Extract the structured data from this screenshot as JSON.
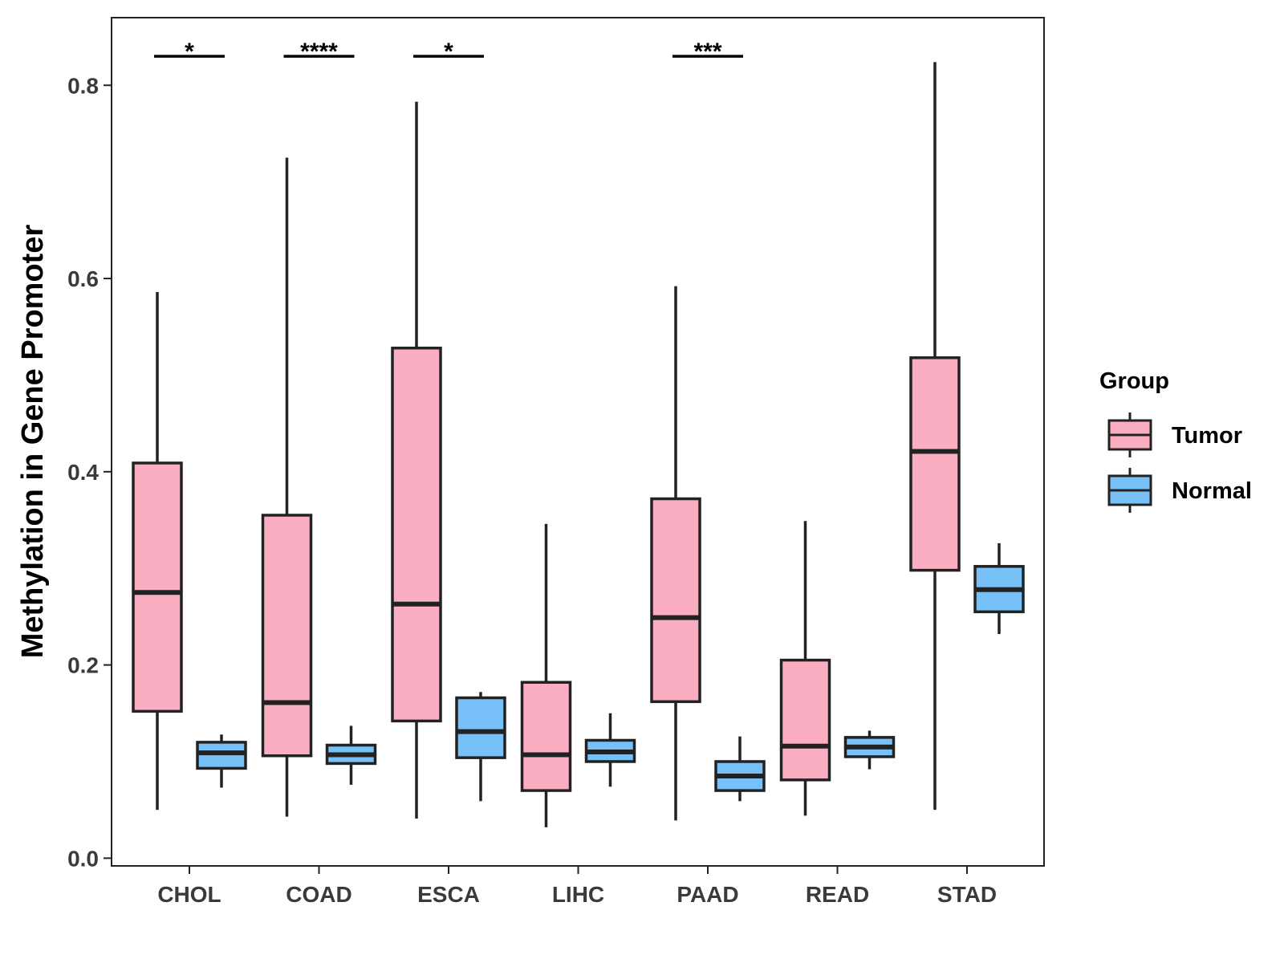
{
  "chart_data": {
    "type": "boxplot",
    "title": "",
    "xlabel": "",
    "ylabel": "Methylation in Gene Promoter",
    "ylim": [
      -0.008,
      0.87
    ],
    "yticks": [
      0.0,
      0.2,
      0.4,
      0.6,
      0.8
    ],
    "ytick_labels": [
      "0.0",
      "0.2",
      "0.4",
      "0.6",
      "0.8"
    ],
    "categories": [
      "CHOL",
      "COAD",
      "ESCA",
      "LIHC",
      "PAAD",
      "READ",
      "STAD"
    ],
    "legend": {
      "title": "Group",
      "position": "right",
      "entries": [
        {
          "name": "Tumor",
          "color": "#FBAEC2"
        },
        {
          "name": "Normal",
          "color": "#77C0F8"
        }
      ]
    },
    "series": [
      {
        "name": "Tumor",
        "color": "#FBAEC2",
        "boxes": [
          {
            "min": 0.05,
            "q1": 0.152,
            "median": 0.275,
            "q3": 0.409,
            "max": 0.586
          },
          {
            "min": 0.043,
            "q1": 0.106,
            "median": 0.161,
            "q3": 0.355,
            "max": 0.725
          },
          {
            "min": 0.041,
            "q1": 0.142,
            "median": 0.263,
            "q3": 0.528,
            "max": 0.783
          },
          {
            "min": 0.032,
            "q1": 0.07,
            "median": 0.107,
            "q3": 0.182,
            "max": 0.346
          },
          {
            "min": 0.039,
            "q1": 0.162,
            "median": 0.249,
            "q3": 0.372,
            "max": 0.592
          },
          {
            "min": 0.044,
            "q1": 0.081,
            "median": 0.116,
            "q3": 0.205,
            "max": 0.349
          },
          {
            "min": 0.05,
            "q1": 0.298,
            "median": 0.421,
            "q3": 0.518,
            "max": 0.824
          }
        ]
      },
      {
        "name": "Normal",
        "color": "#77C0F8",
        "boxes": [
          {
            "min": 0.073,
            "q1": 0.093,
            "median": 0.109,
            "q3": 0.12,
            "max": 0.128
          },
          {
            "min": 0.076,
            "q1": 0.098,
            "median": 0.107,
            "q3": 0.117,
            "max": 0.137
          },
          {
            "min": 0.059,
            "q1": 0.104,
            "median": 0.131,
            "q3": 0.166,
            "max": 0.172
          },
          {
            "min": 0.074,
            "q1": 0.1,
            "median": 0.11,
            "q3": 0.122,
            "max": 0.15
          },
          {
            "min": 0.059,
            "q1": 0.07,
            "median": 0.085,
            "q3": 0.1,
            "max": 0.126
          },
          {
            "min": 0.092,
            "q1": 0.105,
            "median": 0.115,
            "q3": 0.125,
            "max": 0.132
          },
          {
            "min": 0.232,
            "q1": 0.255,
            "median": 0.278,
            "q3": 0.302,
            "max": 0.326
          }
        ]
      }
    ],
    "significance": [
      {
        "category": "CHOL",
        "label": "*"
      },
      {
        "category": "COAD",
        "label": "****"
      },
      {
        "category": "ESCA",
        "label": "*"
      },
      {
        "category": "PAAD",
        "label": "***"
      }
    ],
    "significance_y": 0.83
  }
}
